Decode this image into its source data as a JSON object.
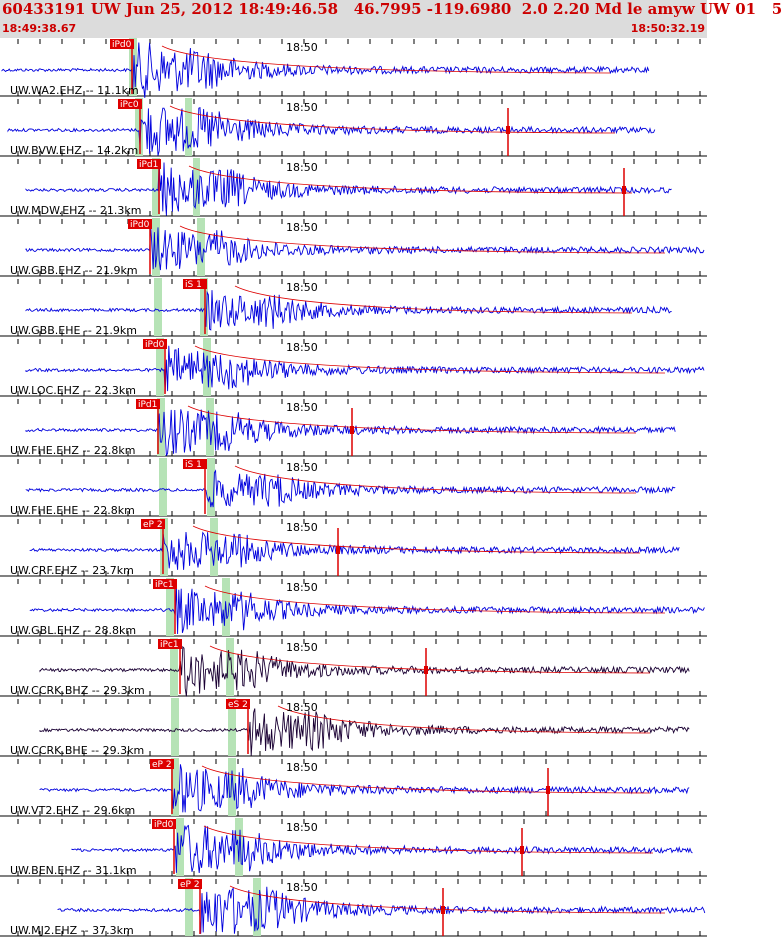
{
  "header": {
    "title": "60433191 UW Jun 25, 2012 18:49:46.58   46.7995 -119.6980  2.0 2.20 Md le amyw UW 01   5",
    "start_time": "18:49:38.67",
    "end_time": "18:50:32.19"
  },
  "time_label": "18:50",
  "colors": {
    "trace": "#0000dd",
    "trace_dark": "#1a0033",
    "pick": "#dd0000",
    "phase_band": "#b6e3b6",
    "axis": "#000000",
    "header_bg": "#dcdcdc"
  },
  "phase_bands_label": "predicted P and S arrival windows",
  "traces": [
    {
      "label": "UW.WA2.EHZ -- 11.1km",
      "pick": "iPd0",
      "flag": false
    },
    {
      "label": "UW.BVW.EHZ -- 14.2km",
      "pick": "iPc0",
      "flag": true
    },
    {
      "label": "UW.MDW.EHZ -- 21.3km",
      "pick": "iPd1",
      "flag": true
    },
    {
      "label": "UW.GBB.EHZ -- 21.9km",
      "pick": "iPd0",
      "flag": false
    },
    {
      "label": "UW.GBB.EHE -- 21.9km",
      "pick": "iS 1",
      "flag": false
    },
    {
      "label": "UW.LOC.EHZ -- 22.3km",
      "pick": "iPd0",
      "flag": false
    },
    {
      "label": "UW.FHE.EHZ -- 22.8km",
      "pick": "iPd1",
      "flag": true
    },
    {
      "label": "UW.FHE.EHE -- 22.8km",
      "pick": "iS 1",
      "flag": false
    },
    {
      "label": "UW.CRF.EHZ -- 23.7km",
      "pick": "eP 2",
      "flag": true
    },
    {
      "label": "UW.GBL.EHZ -- 28.8km",
      "pick": "iPc1",
      "flag": false
    },
    {
      "label": "UW.CCRK.BHZ -- 29.3km",
      "pick": "iPc1",
      "flag": true
    },
    {
      "label": "UW.CCRK.BHE -- 29.3km",
      "pick": "eS 2",
      "flag": false
    },
    {
      "label": "UW.VT2.EHZ -- 29.6km",
      "pick": "eP 2",
      "flag": true
    },
    {
      "label": "UW.BEN.EHZ -- 31.1km",
      "pick": "iPd0",
      "flag": true
    },
    {
      "label": "UW.MJ2.EHZ -- 37.3km",
      "pick": "eP 2",
      "flag": true
    }
  ]
}
